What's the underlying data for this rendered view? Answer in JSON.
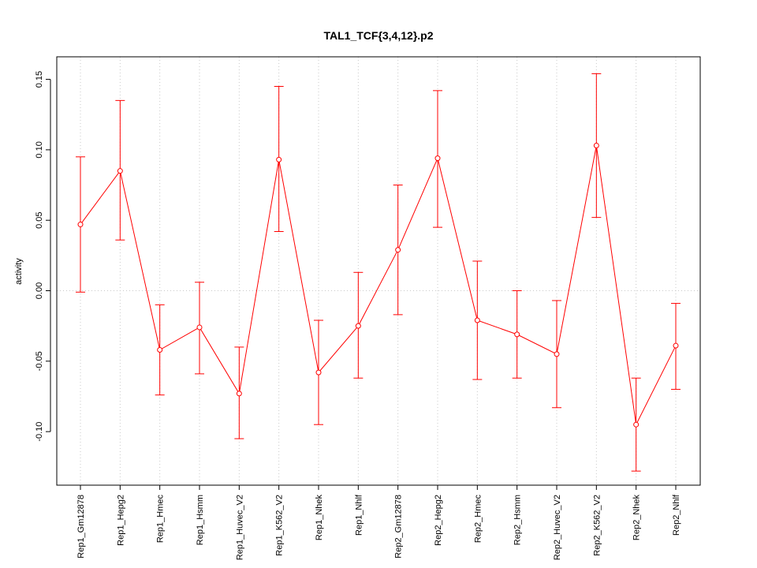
{
  "chart_data": {
    "type": "line",
    "title": "TAL1_TCF{3,4,12}.p2",
    "xlabel": "",
    "ylabel": "activity",
    "ylim": [
      -0.138,
      0.166
    ],
    "grid": true,
    "series_color": "#ff0000",
    "grid_color": "#c8c8c8",
    "yticks": [
      -0.1,
      -0.05,
      0.0,
      0.05,
      0.1,
      0.15
    ],
    "ytick_labels": [
      "-0.10",
      "-0.05",
      "0.00",
      "0.05",
      "0.10",
      "0.15"
    ],
    "categories": [
      "Rep1_Gm12878",
      "Rep1_Hepg2",
      "Rep1_Hmec",
      "Rep1_Hsmm",
      "Rep1_Huvec_V2",
      "Rep1_K562_V2",
      "Rep1_Nhek",
      "Rep1_Nhlf",
      "Rep2_Gm12878",
      "Rep2_Hepg2",
      "Rep2_Hmec",
      "Rep2_Hsmm",
      "Rep2_Huvec_V2",
      "Rep2_K562_V2",
      "Rep2_Nhek",
      "Rep2_Nhlf"
    ],
    "values": [
      0.047,
      0.085,
      -0.042,
      -0.026,
      -0.073,
      0.093,
      -0.058,
      -0.025,
      0.029,
      0.094,
      -0.021,
      -0.031,
      -0.045,
      0.103,
      -0.095,
      -0.039
    ],
    "upper": [
      0.095,
      0.135,
      -0.01,
      0.006,
      -0.04,
      0.145,
      -0.021,
      0.013,
      0.075,
      0.142,
      0.021,
      0.0,
      -0.007,
      0.154,
      -0.062,
      -0.009
    ],
    "lower": [
      -0.001,
      0.036,
      -0.074,
      -0.059,
      -0.105,
      0.042,
      -0.095,
      -0.062,
      -0.017,
      0.045,
      -0.063,
      -0.062,
      -0.083,
      0.052,
      -0.128,
      -0.07
    ]
  }
}
